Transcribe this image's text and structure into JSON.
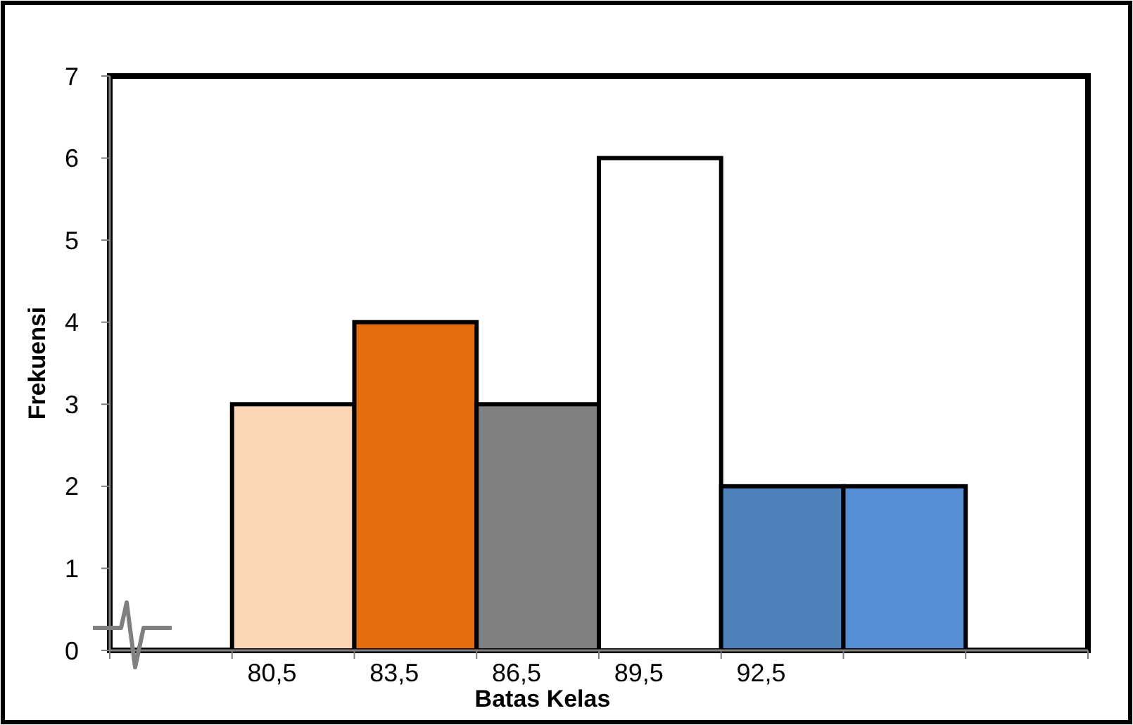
{
  "chart_data": {
    "type": "bar",
    "xlabel": "Batas Kelas",
    "ylabel": "Frekuensi",
    "categories": [
      null,
      "80,5",
      "83,5",
      "86,5",
      "89,5",
      "92,5",
      null,
      null
    ],
    "values": [
      null,
      3,
      4,
      3,
      6,
      2,
      2,
      null
    ],
    "colors": [
      null,
      "#fcd5b5",
      "#e46c0a",
      "#808080",
      "#ffffff",
      "#4f81bd",
      "#558ed5",
      null
    ],
    "ylim": [
      0,
      7
    ],
    "yticks": [
      0,
      1,
      2,
      3,
      4,
      5,
      6,
      7
    ]
  }
}
